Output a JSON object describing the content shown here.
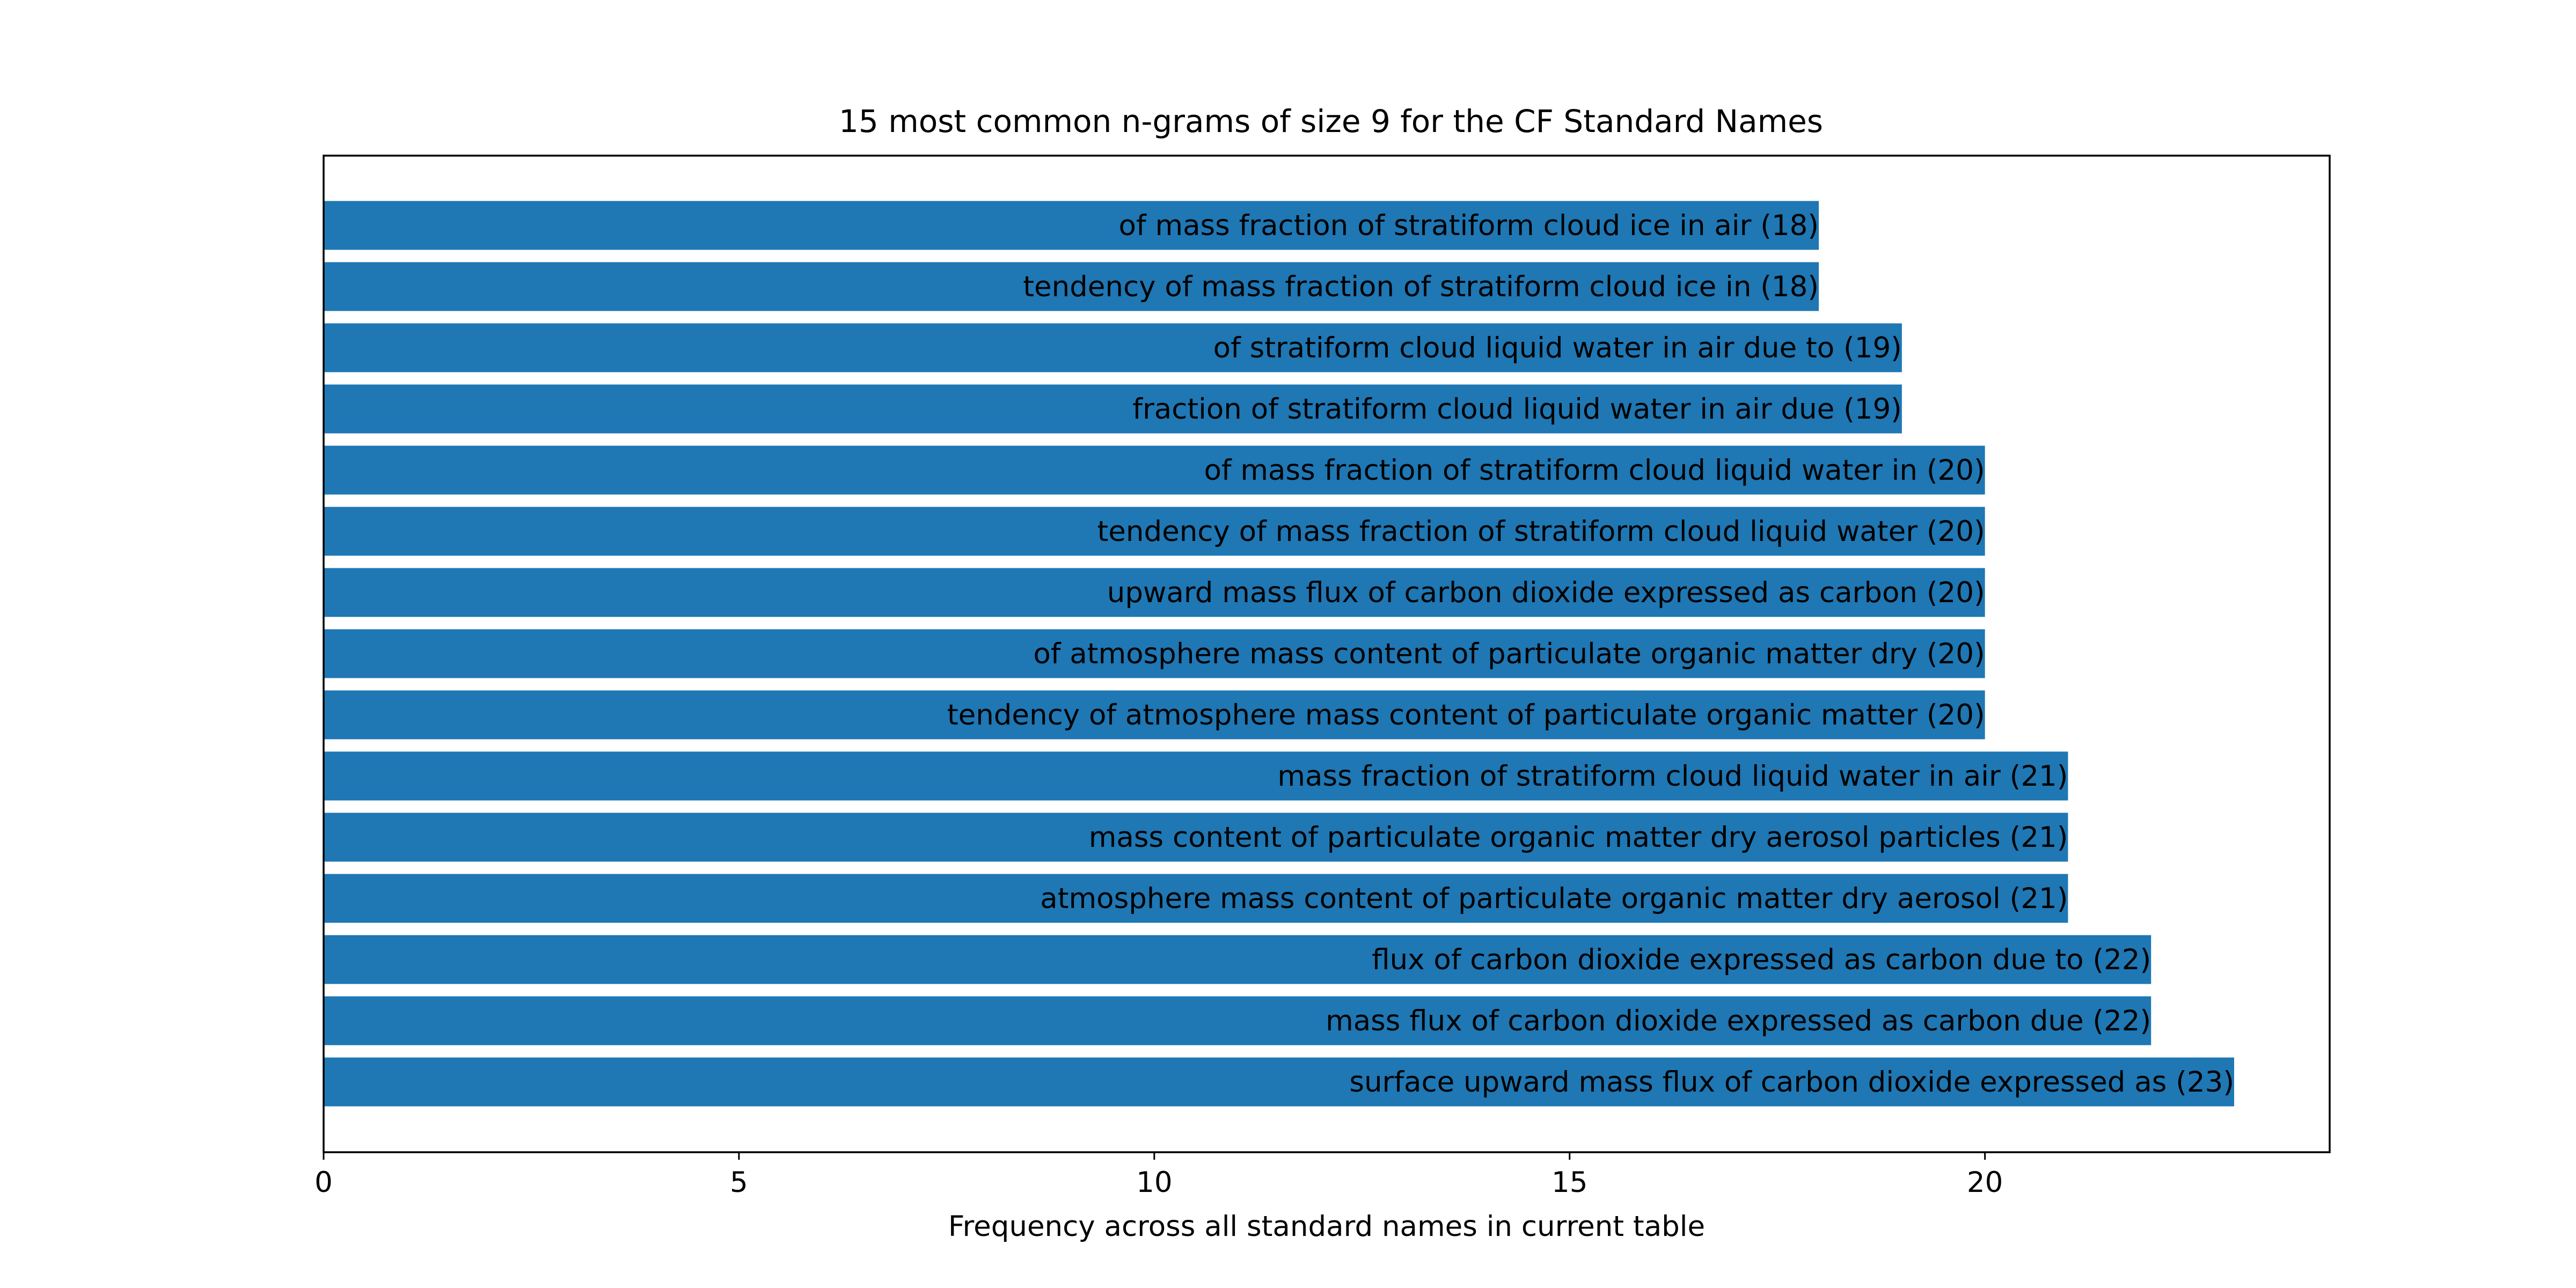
{
  "chart_data": {
    "type": "bar",
    "orientation": "horizontal",
    "title": "15 most common n-grams of size 9 for the CF Standard Names",
    "xlabel": "Frequency across all standard names in current table",
    "ylabel": "",
    "xlim": [
      0,
      24.15
    ],
    "xticks": [
      0,
      5,
      10,
      15,
      20
    ],
    "grid": false,
    "legend": "none",
    "bar_color": "#1f77b4",
    "categories": [
      "surface upward mass flux of carbon dioxide expressed as",
      "mass flux of carbon dioxide expressed as carbon due",
      "flux of carbon dioxide expressed as carbon due to",
      "atmosphere mass content of particulate organic matter dry aerosol",
      "mass content of particulate organic matter dry aerosol particles",
      "mass fraction of stratiform cloud liquid water in air",
      "tendency of atmosphere mass content of particulate organic matter",
      "of atmosphere mass content of particulate organic matter dry",
      "upward mass flux of carbon dioxide expressed as carbon",
      "tendency of mass fraction of stratiform cloud liquid water",
      "of mass fraction of stratiform cloud liquid water in",
      "fraction of stratiform cloud liquid water in air due",
      "of stratiform cloud liquid water in air due to",
      "tendency of mass fraction of stratiform cloud ice in",
      "of mass fraction of stratiform cloud ice in air"
    ],
    "values": [
      23,
      22,
      22,
      21,
      21,
      21,
      20,
      20,
      20,
      20,
      20,
      19,
      19,
      18,
      18
    ],
    "data_labels": [
      "surface upward mass flux of carbon dioxide expressed as (23)",
      "mass flux of carbon dioxide expressed as carbon due (22)",
      "flux of carbon dioxide expressed as carbon due to (22)",
      "atmosphere mass content of particulate organic matter dry aerosol (21)",
      "mass content of particulate organic matter dry aerosol particles (21)",
      "mass fraction of stratiform cloud liquid water in air (21)",
      "tendency of atmosphere mass content of particulate organic matter (20)",
      "of atmosphere mass content of particulate organic matter dry (20)",
      "upward mass flux of carbon dioxide expressed as carbon (20)",
      "tendency of mass fraction of stratiform cloud liquid water (20)",
      "of mass fraction of stratiform cloud liquid water in (20)",
      "fraction of stratiform cloud liquid water in air due (19)",
      "of stratiform cloud liquid water in air due to (19)",
      "tendency of mass fraction of stratiform cloud ice in (18)",
      "of mass fraction of stratiform cloud ice in air (18)"
    ]
  }
}
